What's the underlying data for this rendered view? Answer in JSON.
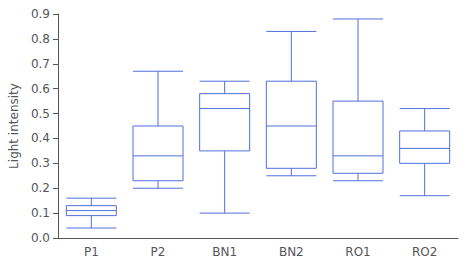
{
  "chart_data": {
    "type": "boxplot",
    "ylabel": "Light intensity",
    "categories": [
      "P1",
      "P2",
      "BN1",
      "BN2",
      "RO1",
      "RO2"
    ],
    "boxes": [
      {
        "whislo": 0.04,
        "q1": 0.09,
        "med": 0.11,
        "q3": 0.13,
        "whishi": 0.16
      },
      {
        "whislo": 0.2,
        "q1": 0.23,
        "med": 0.33,
        "q3": 0.45,
        "whishi": 0.67
      },
      {
        "whislo": 0.1,
        "q1": 0.35,
        "med": 0.52,
        "q3": 0.58,
        "whishi": 0.63
      },
      {
        "whislo": 0.25,
        "q1": 0.28,
        "med": 0.45,
        "q3": 0.63,
        "whishi": 0.83
      },
      {
        "whislo": 0.23,
        "q1": 0.26,
        "med": 0.33,
        "q3": 0.55,
        "whishi": 0.88
      },
      {
        "whislo": 0.17,
        "q1": 0.3,
        "med": 0.36,
        "q3": 0.43,
        "whishi": 0.52
      }
    ],
    "ylim": [
      0.0,
      0.9
    ],
    "yticks": [
      {
        "value": 0.0,
        "label": "0.0"
      },
      0.1,
      0.2,
      0.3,
      0.4,
      0.5,
      0.6,
      0.7,
      0.8,
      0.9
    ],
    "grid": false
  }
}
